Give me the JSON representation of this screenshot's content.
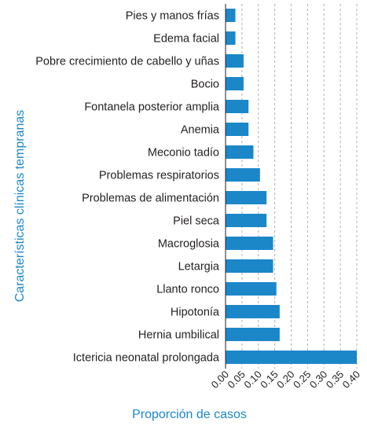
{
  "chart_data": {
    "type": "bar",
    "orientation": "horizontal",
    "categories": [
      "Pies y manos frías",
      "Edema facial",
      "Pobre crecimiento de cabello y uñas",
      "Bocio",
      "Fontanela posterior amplia",
      "Anemia",
      "Meconio tadío",
      "Problemas respiratorios",
      "Problemas de alimentación",
      "Piel seca",
      "Macroglosia",
      "Letargia",
      "Llanto ronco",
      "Hipotonía",
      "Hernia umbilical",
      "Ictericia neonatal prolongada"
    ],
    "values": [
      0.03,
      0.03,
      0.055,
      0.055,
      0.07,
      0.07,
      0.085,
      0.105,
      0.125,
      0.125,
      0.145,
      0.145,
      0.155,
      0.165,
      0.165,
      0.4
    ],
    "xlabel": "Proporción de casos",
    "ylabel": "Características clínicas tempranas",
    "xlim": [
      0,
      0.4
    ],
    "x_ticks": [
      "0.00",
      "0.05",
      "0.10",
      "0.15",
      "0.20",
      "0.25",
      "0.30",
      "0.35",
      "0.40"
    ],
    "grid": "vertical dashed",
    "legend": "none",
    "colors": {
      "bar": "#1b87c9",
      "axis_title": "#1b87c9",
      "text": "#231f20",
      "grid": "#b0b0b0"
    }
  }
}
